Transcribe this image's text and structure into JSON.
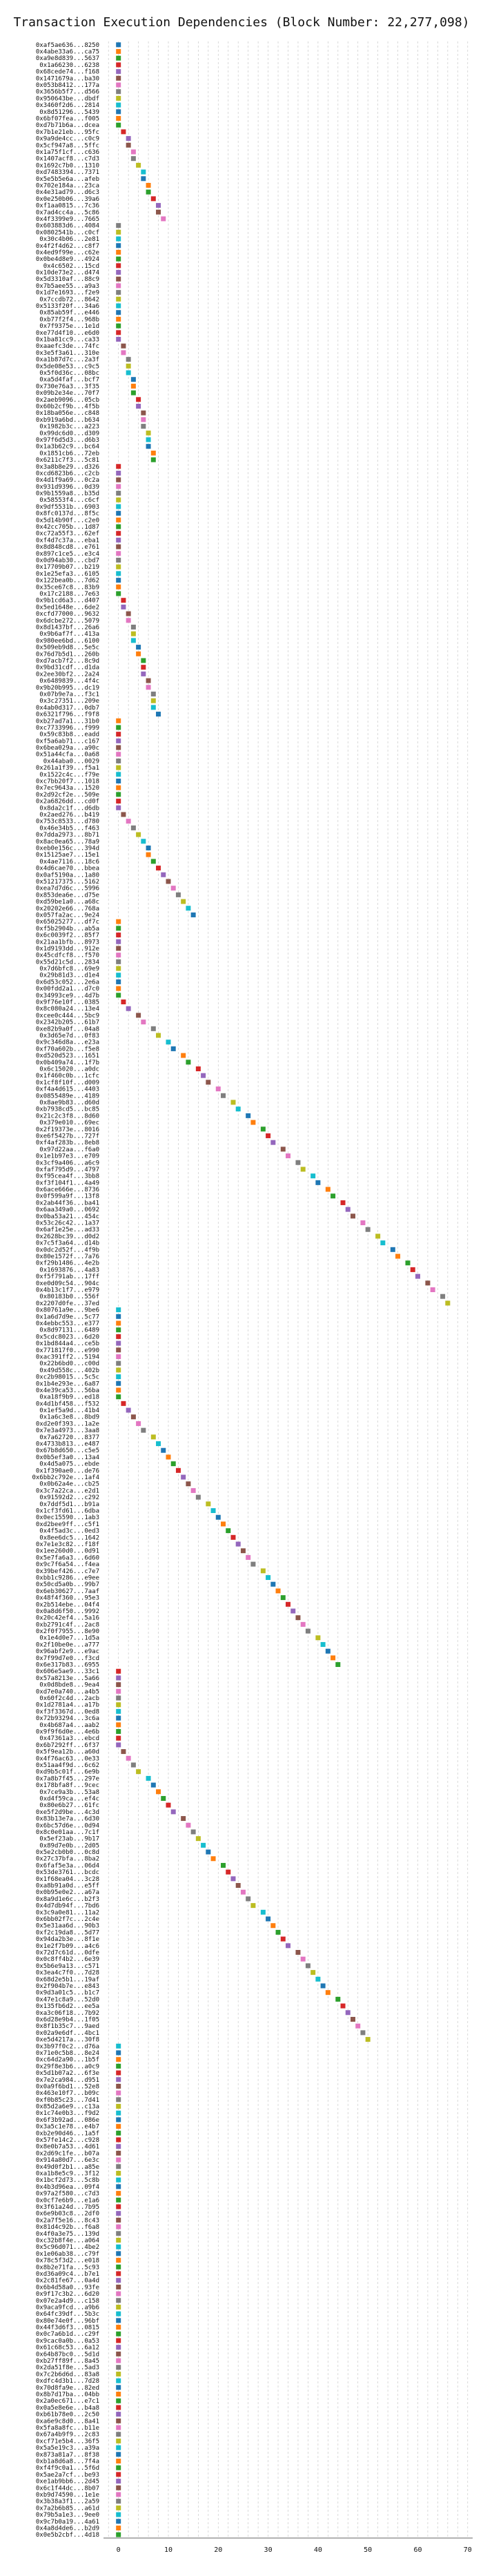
{
  "chart_data": {
    "type": "scatter",
    "title": "Transaction Execution Dependencies (Block Number: 22,277,098)",
    "xlim": [
      -3,
      71
    ],
    "xticks": [
      0,
      10,
      20,
      30,
      40,
      50,
      60,
      70
    ],
    "grid": true,
    "legend": "none",
    "categories": [
      "0xaf5ae636...8250",
      "0x4abe33a6...ca75",
      "0xa9e8d839...5637",
      "0x1a66230...6238",
      "0x68cede74...f168",
      "0x1471679a...ba30",
      "0x053b8412...177a",
      "0x3656b5f7...d566",
      "0x950643be...dbdf",
      "0x3460f2d6...2814",
      "0x8d51296...5439",
      "0x6bf07fea...f005",
      "0xd7b71b6a...dcea",
      "0x7b1e21eb...95fc",
      "0x9a9de4cc...c0c9",
      "0x5cf947a8...5ffc",
      "0x1a75f1cf...c636",
      "0x1407acf8...c7d3",
      "0x1692c7b0...1310",
      "0xd7483394...7371",
      "0x5e5b5e6a...afeb",
      "0x702e184a...23ca",
      "0x4e31ad79...d6c3",
      "0x0e250b06...39a6",
      "0xf1aa0815...7c36",
      "0x7ad4cc4a...5c86",
      "0x4f3399e9...7665",
      "0x603883d6...4084",
      "0x0802541b...c0cf",
      "0x30c4b06...2e81",
      "0x4f2f4d62...c8f7",
      "0x4ed9f99e...c62e",
      "0x0be4d8e9...4924",
      "0x4c6502...15cd",
      "0x10de73e2...d474",
      "0x5d3310af...88c9",
      "0x7b5aee55...a9a3",
      "0x1d7e1693...f2e9",
      "0x7ccdb72...8642",
      "0x5133f20f...34a6",
      "0x85ab59f...e446",
      "0xb77f2f4...968b",
      "0x7f9375e...1e1d",
      "0xe77d4f10...e6d0",
      "0x1ba81cc9...ca33",
      "0xaaefc3de...74fc",
      "0x3e5f3a61...310e",
      "0xa1b87d7c...2a3f",
      "0x5de08e53...c9c5",
      "0x5f0d36c...08bc",
      "0xa5d4faf...bcf7",
      "0x730e76a3...3f35",
      "0x09b2e34e...70f7",
      "0x2aeb9096...05cb",
      "0x60b2cf9b...4f5b",
      "0x18ba056e...c848",
      "0xb919a6bd...b634",
      "0x1982b3c...a223",
      "0x99dc6d0...d309",
      "0x97f6d5d3...d6b3",
      "0x1a3b62c9...bc64",
      "0x1851cb6...72eb",
      "0x6211c7f3...5c81",
      "0x3a8b8e29...d326",
      "0xcd6823b6...c2cb",
      "0x4d1f9a69...0c2a",
      "0x931d9396...0d39",
      "0x9b1559a8...b35d",
      "0x58553f4...c6cf",
      "0x9df5531b...6903",
      "0x8fc0137d...8f5c",
      "0x5d14b90f...c2e0",
      "0x42cc705b...1d87",
      "0xc72a55f3...62ef",
      "0xf4d7c37a...eba1",
      "0x8d848cd8...e761",
      "0x897c1ce5...e3c4",
      "0x0d94ab30...cbd7",
      "0x17709b07...b219",
      "0x1e25efa3...6105",
      "0x122bea0b...7d62",
      "0x35ce67c8...83b9",
      "0x17c2188...7e63",
      "0x9b1cd6a3...d407",
      "0x5ed1648e...6de2",
      "0xcfd77000...9632",
      "0x6dcbe272...5079",
      "0x8d1437bf...26a6",
      "0x9b6af7f...413a",
      "0x980ee6bd...6100",
      "0x509eb9d8...5e5c",
      "0x76d7b5d1...260b",
      "0xd7acb7f2...8c9d",
      "0x9bd31cdf...d1da",
      "0x2ee30bf2...2a24",
      "0x6489839...4f4c",
      "0x9b20b995...dc19",
      "0x07b9e7a...f3c1",
      "0x3c27351...209e",
      "0x4ab0d317...0db7",
      "0x6321f796...f9f8",
      "0xb27ad7a1...31b0",
      "0xc7733996...f999",
      "0x59c83b8...eadd",
      "0xf5a6ab71...c167",
      "0x6bea029a...a90c",
      "0x51a44cfa...0a68",
      "0x44aba0...0029",
      "0x261a1f39...f5a1",
      "0x1522c4c...f79e",
      "0xc7bb20f7...1018",
      "0x7ec9643a...1520",
      "0x2d92cf2e...509e",
      "0x2a6826dd...cd0f",
      "0x8da2c1f...d6db",
      "0x2aed276...b419",
      "0x753c8533...d780",
      "0x46e34b5...f463",
      "0x7dda2973...8b71",
      "0x8ac0ea65...78a9",
      "0xeb0e156c...394d",
      "0x15125ae7...15e1",
      "0x4ae7116...18c6",
      "0x4d6cae70...bbea",
      "0x0af5190a...1a80",
      "0x51217375...5162",
      "0xea7d7d6c...5996",
      "0x853dea6e...d75e",
      "0xd59be1a0...a68c",
      "0x20202e66...768a",
      "0x057fa2ac...9e24",
      "0x65025277...df7c",
      "0xf5b2904b...ab5a",
      "0x6c0039f2...85f7",
      "0x21aa1bfb...8973",
      "0x1d9193dd...912e",
      "0x45cdfcf8...f570",
      "0x55d21c5d...2834",
      "0x7d6bfc8...69e9",
      "0x29b81d3...d1e4",
      "0x6d53c052...2e6a",
      "0x00fdd2a1...d7c0",
      "0x34993ce9...4d7b",
      "0x9f76e10f...0385",
      "0x8c080a24...13e4",
      "0xcee0c444...5bc9",
      "0x2342b205...61b7",
      "0xe82b9a0f...04a8",
      "0x3d65e7d...0f83",
      "0x9c346d8a...e23a",
      "0xf70a602b...f5e8",
      "0xd520d523...1651",
      "0x0b409a74...1f7b",
      "0x6c15020...a0dc",
      "0x1f460c0b...1cfc",
      "0x1cf8f10f...d009",
      "0xf4a4d615...4403",
      "0x0855489e...4189",
      "0x8ae9b83...d60d",
      "0xb7938cd5...bc85",
      "0x21c2c3f8...8d60",
      "0x379e010...69ec",
      "0x2f19373e...8016",
      "0xe6f5427b...727f",
      "0xf4af283b...8eb8",
      "0x97d22aa...f6a0",
      "0x1e1b97e3...e709",
      "0x3cf9a406...a6c9",
      "0xfaf795d9...4797",
      "0xf95cea4f...3bb8",
      "0xf3f104f1...4a49",
      "0x6ace666e...8736",
      "0x0f599a9f...13f8",
      "0x2ab44f36...ba41",
      "0x6aa349a0...0692",
      "0x0ba53a21...454c",
      "0x53c26c42...1a37",
      "0x6af1e25e...ad33",
      "0x2628bc39...d0d2",
      "0x7c5f3a64...d14b",
      "0x0dc2d52f...4f9b",
      "0x80e1572f...7a76",
      "0xf29b1486...4e2b",
      "0x1693876...4a83",
      "0xf5f791ab...17ff",
      "0xe0d09c54...904c",
      "0x4b13c1f7...e979",
      "0x80183b0...556f",
      "0x2207d0fe...37ed",
      "0x80761a9e...9be6",
      "0x1a6d7d9e...5c77",
      "0x4ebbc553...e377",
      "0x8d97131...6489",
      "0x5cdc8023...6d20",
      "0x1bd844a4...ce5b",
      "0x771817f0...e990",
      "0xac391ff2...5194",
      "0x22b6bd0...c00d",
      "0x49d558c...402b",
      "0xc2b98015...5c5c",
      "0x1b4e293e...6a87",
      "0x4e39ca53...56ba",
      "0xa18f9b9...ed18",
      "0x4d1bf458...f532",
      "0x1ef5a9d...41b4",
      "0x1a6c3e8...8bd9",
      "0xd2e0f393...1a2e",
      "0x7e3a4973...3aa8",
      "0x7a62720...8377",
      "0x4733b813...e487",
      "0x67b8d650...c5e5",
      "0x0b5ef3a0...13a4",
      "0x4d5a075...ebde",
      "0x1f390ae0...de76",
      "0x6bb2c792e...1af4",
      "0x0b62a4e...cb25",
      "0x3c7a22ca...e2d1",
      "0x91592d2...c292",
      "0x7ddf5d1...b91a",
      "0x1cf3fd61...6dba",
      "0x0ec15590...1ab3",
      "0xd2bee9ff...c5f1",
      "0x4f5ad3c...0ed3",
      "0x8ee6dc5...1642",
      "0x7e1e3c82...f18f",
      "0x1ee260d0...0d91",
      "0x5e7fa6a3...6d60",
      "0x9c7f6a54...f4ea",
      "0x39bef426...c7e7",
      "0xbb1c9286...e9ee",
      "0x50cd5a0b...99b7",
      "0x6eb30627...7aaf",
      "0x48f4f360...95e3",
      "0x2b514ebe...04f4",
      "0x0a8d6f50...9992",
      "0x20c42ef4...5a16",
      "0xb2791c4f...2ac8",
      "0x2f0f7955...8e90",
      "0x1e4d0e7...1d5a",
      "0x2f10be0e...a777",
      "0x96abf2e9...e9ac",
      "0x7f99d7e0...f3cd",
      "0x6e317b83...6955",
      "0x606e5ae9...33c1",
      "0x57a8213e...5a66",
      "0x0d8bde8...9ea4",
      "0xd7e0a740...a4b5",
      "0x60f2c4d...2acb",
      "0x1d2781a4...a17b",
      "0xf3f3367d...0ed8",
      "0x72b93294...3c6a",
      "0x4b687a4...aab2",
      "0x9f9f6d0e...4e6b",
      "0x47361a3...ebcd",
      "0x6b7292ff...6f37",
      "0x5f9ea12b...a60d",
      "0x4f76ac63...0e33",
      "0x51aa4f9d...6c62",
      "0xd9b5c01f...6e9b",
      "0x7a8b7f45...297e",
      "0x178bfa8f...9cec",
      "0x7ce9a3b...53a8",
      "0xd4f59ca...ef4c",
      "0x80e6b27...61fc",
      "0xe5f2d9be...4c3d",
      "0x83b13e7a...6d30",
      "0x6bc57d6e...0d94",
      "0x8c0e01aa...7c1f",
      "0x5ef23ab...9b17",
      "0x89d7e0b...2d05",
      "0x5e2cb0b0...0c8d",
      "0x27c37bfa...8ba2",
      "0x6faf5e3a...06d4",
      "0x53de3761...bcdc",
      "0x1f68ea04...3c28",
      "0xa8b91a0d...e5ff",
      "0x0b95e0e2...a67a",
      "0x8a9d1e6c...b2f3",
      "0x4d7db94f...7bd6",
      "0x3c9a0e81...11a2",
      "0x6bb02f7c...2c4e",
      "0x5e31aa6d...90b3",
      "0xf2c19da8...5d77",
      "0x94da2b3e...8f1e",
      "0x1e2f7b09...a4c6",
      "0x72d7c61d...0dfe",
      "0x0c8ff4b2...6e39",
      "0x5b6e9a13...c571",
      "0x3ea4c7f0...7d28",
      "0x68d2e5b1...19af",
      "0x2f904b7e...e843",
      "0x9d3a01c5...b1c7",
      "0x47e1c8a9...52d0",
      "0x135fb6d2...ee5a",
      "0xa3c06f18...7b92",
      "0x6d28e9b4...1f05",
      "0x8f1b35c7...9aed",
      "0x02a9e6df...4bc1",
      "0xe5d4217a...30f8",
      "0x3b97f0c2...d76a",
      "0x71e0c5b8...8e24",
      "0xc64d2a90...1b5f",
      "0x29f8e3b6...a0c9",
      "0x5d1b07a2...6f3e",
      "0x7e2ca984...d951",
      "0x0a9f6bd1...52e8",
      "0x463e10f7...b09c",
      "0xf0b85c23...7d41",
      "0x85d2a6e9...c13a",
      "0x1c74e0b3...f9d2",
      "0x6f3b92ad...086e",
      "0x3a5c1e78...e4b7",
      "0xb2e90d46...1a5f",
      "0x57fe14c2...c928",
      "0x8e0b7a53...4d61",
      "0x2d69c1fe...b07a",
      "0x914a80d7...6e3c",
      "0x49d0f2b1...a85e",
      "0xa1b8e5c9...3f12",
      "0x1bcf2d73...5c8b",
      "0x4b3d96ea...09f4",
      "0x97a2f580...c7d3",
      "0x0cf7e6b9...e1a6",
      "0x3f61a24d...7b95",
      "0x6e9b03c8...2df0",
      "0x2a7f5e16...8c43",
      "0x81d4c92b...f6a8",
      "0x4f0a3e75...139d",
      "0xc32b8f4e...a064",
      "0x5c96d071...4be2",
      "0x1e06ab38...c79f",
      "0x78c5f3d2...e018",
      "0x8b2e71fa...5c93",
      "0xd36a09c4...b7e1",
      "0x2c81fe67...0a4d",
      "0x6b4d58a0...93fe",
      "0x9f17c3b2...6d20",
      "0x07e2a4d9...c158",
      "0x9aca9fcd...a9b6",
      "0x64fc39df...5b3c",
      "0x80e74e0f...96bf",
      "0x44f3d6f3...0815",
      "0x0c7a6b1d...c29f",
      "0x9cac0a0b...0a53",
      "0x61c68c53...6a12",
      "0x64b87bc0...5d1d",
      "0xb27ff89f...8a45",
      "0x2da51f8e...5ad3",
      "0x7c2b6d6d...83a8",
      "0xdfc4d3b1...7d28",
      "0x70d8fa9e...82ed",
      "0x8b7d17ba...04bb",
      "0x2a0ec671...e7c1",
      "0x0a5e8e6e...b4a8",
      "0xb61b78e0...2c50",
      "0xa6e9c8d0...8a41",
      "0x5fa8a8fc...b11e",
      "0x67a4b9f9...2c83",
      "0xcf71e5b4...36f5",
      "0x5a5e19c3...a39a",
      "0x873a81a7...8f38",
      "0xb1a8d6a8...7f4a",
      "0xf4f9c0a1...5f6d",
      "0x5ae2a7cf...be93",
      "0xe1ab9bb6...2d45",
      "0x6c1f44dc...8b07",
      "0xb9d74590...1e1e",
      "0x3b38a3f1...2a59",
      "0x7a2b6b85...a61d",
      "0x79b5a1e3...9ee0",
      "0x9c7b0a19...4a61",
      "0x4a8d4de6...b2d9",
      "0x0e5b2cbf...4d18"
    ],
    "series_colors": [
      "#1f77b4",
      "#ff7f0e",
      "#2ca02c",
      "#d62728",
      "#9467bd",
      "#8c564b",
      "#e377c2",
      "#7f7f7f",
      "#bcbd22",
      "#17becf"
    ],
    "values": []
  }
}
